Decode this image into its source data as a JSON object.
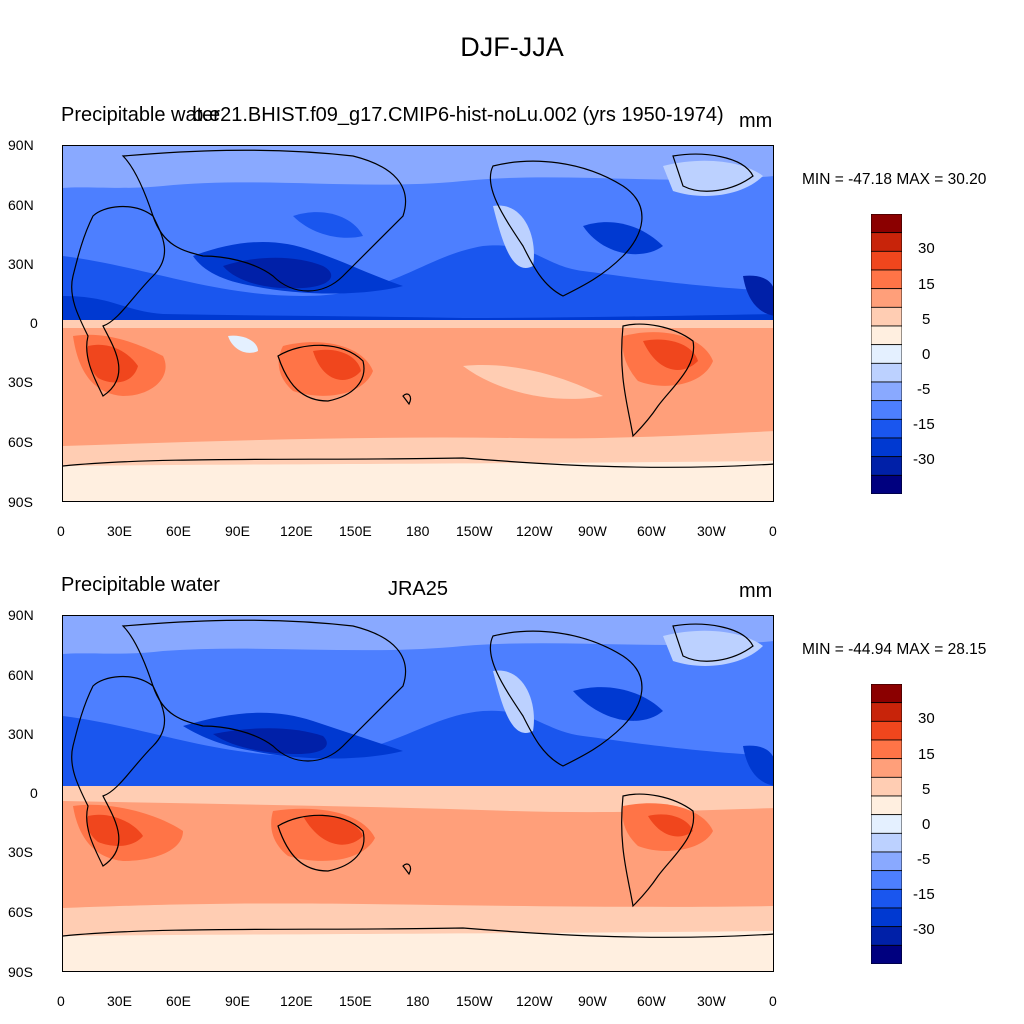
{
  "title": "DJF-JJA",
  "colorbar": {
    "colors": [
      "#00007f",
      "#0020a8",
      "#0039d1",
      "#1a56ee",
      "#4d7fff",
      "#89a9ff",
      "#bcd1ff",
      "#e4f0ff",
      "#ffefe0",
      "#ffcdb3",
      "#ff9f7a",
      "#ff7447",
      "#f0461d",
      "#c8240a",
      "#8b0000"
    ],
    "labels": [
      "30",
      "15",
      "5",
      "0",
      "-5",
      "-15",
      "-30"
    ]
  },
  "lon_ticks": [
    "0",
    "30E",
    "60E",
    "90E",
    "120E",
    "150E",
    "180",
    "150W",
    "120W",
    "90W",
    "60W",
    "30W",
    "0"
  ],
  "lat_ticks": [
    "90N",
    "60N",
    "30N",
    "0",
    "30S",
    "60S",
    "90S"
  ],
  "panels": [
    {
      "id": "model",
      "left_label": "Precipitable water",
      "center_label": "b.e21.BHIST.f09_g17.CMIP6-hist-noLu.002 (yrs 1950-1974)",
      "units": "mm",
      "minmax": "MIN = -47.18 MAX =  30.20"
    },
    {
      "id": "obs",
      "left_label": "Precipitable water",
      "center_label": "JRA25",
      "units": "mm",
      "minmax": "MIN = -44.94 MAX =  28.15"
    }
  ]
}
